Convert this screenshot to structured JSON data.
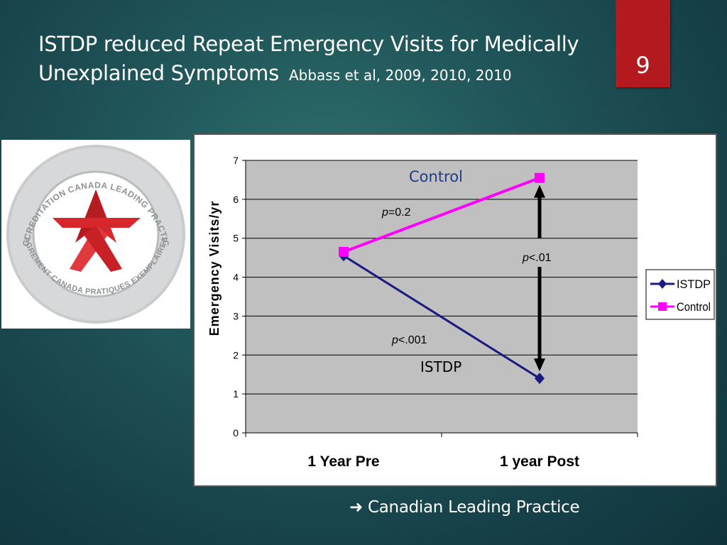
{
  "slide": {
    "title_line1": "ISTDP reduced Repeat Emergency Visits for Medically",
    "title_line2": "Unexplained Symptoms",
    "citation": "Abbass et al, 2009, 2010, 2010",
    "slide_number": "9",
    "footnote": "Canadian Leading Practice",
    "footnote_icon": "right-arrow-icon"
  },
  "seal": {
    "outer_text_top": "ACCREDITATION CANADA LEADING PRACTICE",
    "outer_text_bottom": "AGREMENT CANADA PRATIQUES EXEMPLAIRES",
    "star_color": "#d8262d",
    "ring_color": "#b9bcbd"
  },
  "colors": {
    "istdp": "#1a1a80",
    "control": "#ff00ff",
    "plot_bg": "#c0c0c0",
    "slide_number_bg": "#b3191e"
  },
  "chart_data": {
    "type": "line",
    "categories": [
      "1 Year Pre",
      "1 year Post"
    ],
    "series": [
      {
        "name": "ISTDP",
        "values": [
          4.55,
          1.4
        ],
        "color": "#1a1a80",
        "marker": "diamond"
      },
      {
        "name": "Control",
        "values": [
          4.65,
          6.55
        ],
        "color": "#ff00ff",
        "marker": "square"
      }
    ],
    "ylabel": "Emergency Visits/yr",
    "ylim": [
      0,
      7
    ],
    "yticks": [
      "0",
      "1",
      "2",
      "3",
      "4",
      "5",
      "6",
      "7"
    ],
    "grid": true,
    "legend_position": "right",
    "annotations": {
      "control_label": "Control",
      "istdp_label": "ISTDP",
      "p_control_prefix": "p",
      "p_control_value": "=0.2",
      "p_istdp_prefix": "p",
      "p_istdp_value": "<.001",
      "p_between_prefix": "p",
      "p_between_value": "<.01"
    }
  }
}
